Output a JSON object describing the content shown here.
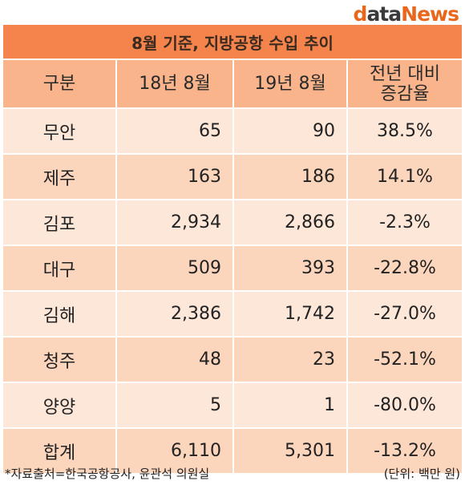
{
  "logo": {
    "part1": "d",
    "part2": "ata",
    "part3": "News"
  },
  "title": "8월 기준, 지방공항 수입 추이",
  "table": {
    "headers": [
      "구분",
      "18년 8월",
      "19년 8월",
      "전년 대비\n증감율"
    ],
    "rows": [
      {
        "region": "무안",
        "y18": "65",
        "y19": "90",
        "change": "38.5%"
      },
      {
        "region": "제주",
        "y18": "163",
        "y19": "186",
        "change": "14.1%"
      },
      {
        "region": "김포",
        "y18": "2,934",
        "y19": "2,866",
        "change": "-2.3%"
      },
      {
        "region": "대구",
        "y18": "509",
        "y19": "393",
        "change": "-22.8%"
      },
      {
        "region": "김해",
        "y18": "2,386",
        "y19": "1,742",
        "change": "-27.0%"
      },
      {
        "region": "청주",
        "y18": "48",
        "y19": "23",
        "change": "-52.1%"
      },
      {
        "region": "양양",
        "y18": "5",
        "y19": "1",
        "change": "-80.0%"
      },
      {
        "region": "합계",
        "y18": "6,110",
        "y19": "5,301",
        "change": "-13.2%"
      }
    ]
  },
  "footer": {
    "source": "*자료출처=한국공항공사, 윤관석 의원실",
    "unit": "(단위: 백만 원)"
  },
  "colors": {
    "title_bg": "#f4844b",
    "header_bg": "#f9b48b",
    "row_light": "#fde7d9",
    "row_dark": "#fcd5bd",
    "logo_accent": "#e8671c"
  }
}
